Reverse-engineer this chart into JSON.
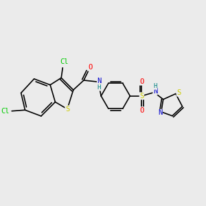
{
  "bg_color": "#ebebeb",
  "bond_color": "#000000",
  "atom_colors": {
    "Cl": "#00cc00",
    "S": "#cccc00",
    "N": "#0000cc",
    "O": "#ff0000",
    "H": "#008080"
  },
  "font_size": 7.5
}
